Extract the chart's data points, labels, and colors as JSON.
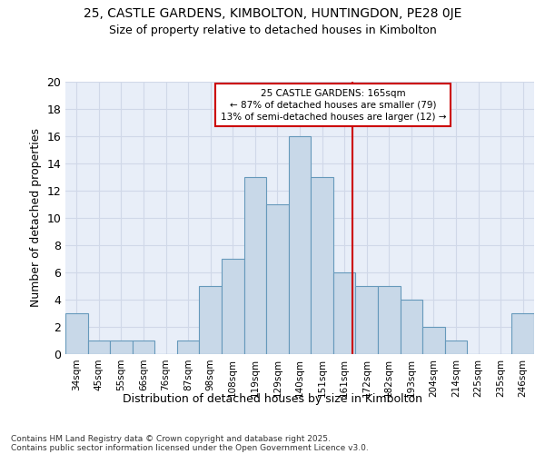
{
  "title1": "25, CASTLE GARDENS, KIMBOLTON, HUNTINGDON, PE28 0JE",
  "title2": "Size of property relative to detached houses in Kimbolton",
  "xlabel": "Distribution of detached houses by size in Kimbolton",
  "ylabel": "Number of detached properties",
  "bar_labels": [
    "34sqm",
    "45sqm",
    "55sqm",
    "66sqm",
    "76sqm",
    "87sqm",
    "98sqm",
    "108sqm",
    "119sqm",
    "129sqm",
    "140sqm",
    "151sqm",
    "161sqm",
    "172sqm",
    "182sqm",
    "193sqm",
    "204sqm",
    "214sqm",
    "225sqm",
    "235sqm",
    "246sqm"
  ],
  "bar_values": [
    3,
    1,
    1,
    1,
    0,
    1,
    5,
    7,
    13,
    11,
    16,
    13,
    6,
    5,
    5,
    4,
    2,
    1,
    0,
    0,
    3
  ],
  "bar_color": "#c8d8e8",
  "bar_edge_color": "#6699bb",
  "grid_color": "#d0d8e8",
  "background_color": "#e8eef8",
  "vline_color": "#cc0000",
  "annotation_text": "25 CASTLE GARDENS: 165sqm\n← 87% of detached houses are smaller (79)\n13% of semi-detached houses are larger (12) →",
  "annotation_box_color": "#cc0000",
  "yticks": [
    0,
    2,
    4,
    6,
    8,
    10,
    12,
    14,
    16,
    18,
    20
  ],
  "ylim": [
    0,
    20
  ],
  "footnote1": "Contains HM Land Registry data © Crown copyright and database right 2025.",
  "footnote2": "Contains public sector information licensed under the Open Government Licence v3.0."
}
